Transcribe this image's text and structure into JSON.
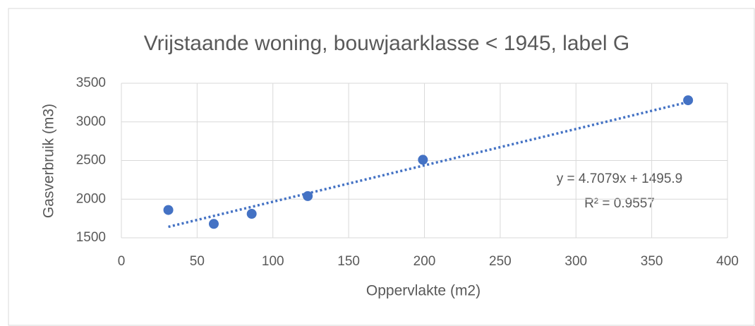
{
  "chart_data": {
    "type": "scatter",
    "title": "Vrijstaande woning, bouwjaarklasse < 1945, label G",
    "x_label": "Oppervlakte (m2)",
    "y_label": "Gasverbruik (m3)",
    "series": [
      {
        "name": "Gasverbruik",
        "color": "#4472c4",
        "x": [
          31,
          61,
          86,
          123,
          199,
          374
        ],
        "values": [
          1860,
          1680,
          1810,
          2040,
          2510,
          3280
        ]
      }
    ],
    "trendline": {
      "slope": 4.7079,
      "intercept": 1495.9,
      "color": "#4472c4"
    },
    "annotations": [
      "y = 4.7079x + 1495.9",
      "R² = 0.9557"
    ],
    "xlim": [
      0,
      400
    ],
    "xticks": [
      0,
      50,
      100,
      150,
      200,
      250,
      300,
      350,
      400
    ],
    "ylim": [
      1500,
      3500
    ],
    "yticks": [
      1500,
      2000,
      2500,
      3000,
      3500
    ],
    "grid": true
  }
}
